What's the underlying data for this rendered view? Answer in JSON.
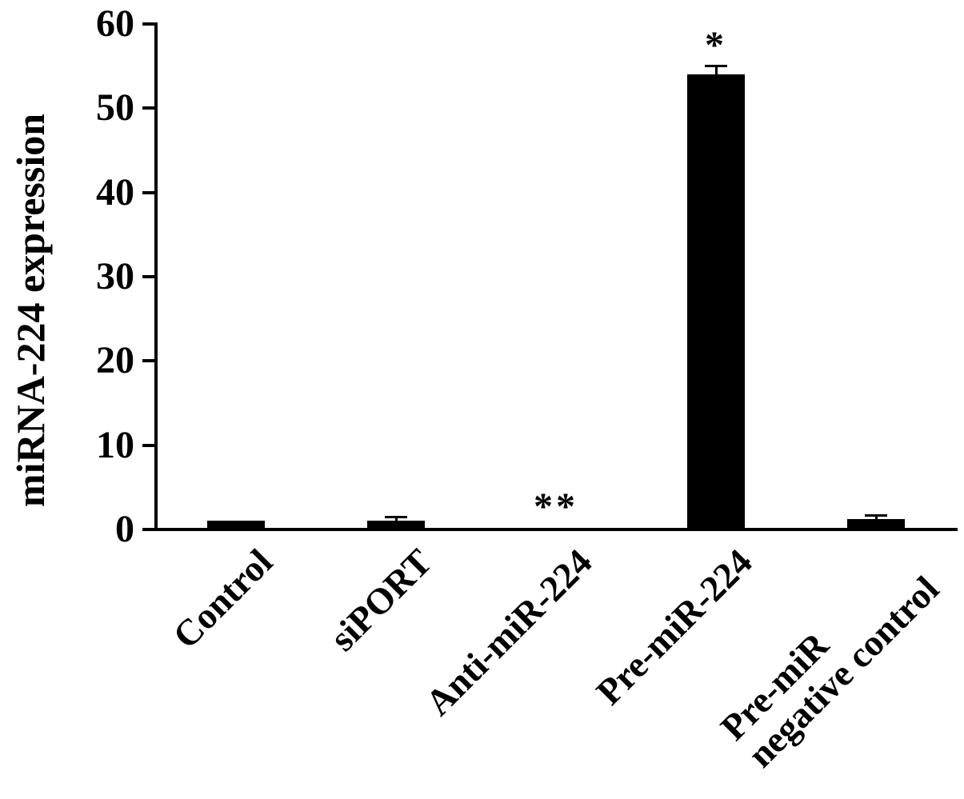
{
  "chart_data": {
    "type": "bar",
    "title": "",
    "xlabel": "",
    "ylabel": "miRNA-224 expression",
    "ylim": [
      0,
      60
    ],
    "yticks": [
      0,
      10,
      20,
      30,
      40,
      50,
      60
    ],
    "categories": [
      "Control",
      "siPORT",
      "Anti-miR-224",
      "Pre-miR-224",
      "Pre-miR\nnegative control"
    ],
    "values": [
      1.0,
      1.0,
      0.2,
      54.0,
      1.2
    ],
    "errors": [
      0,
      0.5,
      0,
      1.0,
      0.5
    ],
    "annotations": [
      "",
      "",
      "**",
      "*",
      ""
    ],
    "bar_color": "#000000",
    "background_color": "#ffffff",
    "grid": false,
    "legend": null
  }
}
